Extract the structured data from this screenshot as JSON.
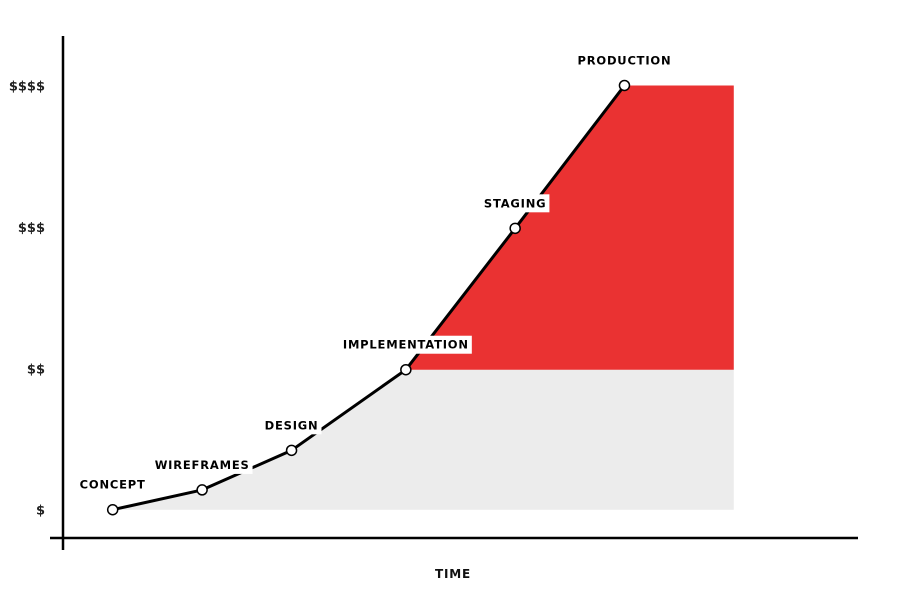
{
  "chart_data": {
    "type": "line",
    "title": "",
    "xlabel": "TIME",
    "ylabel": "",
    "yticks": [
      {
        "value": 1,
        "label": "$"
      },
      {
        "value": 2,
        "label": "$$"
      },
      {
        "value": 3,
        "label": "$$$"
      },
      {
        "value": 4,
        "label": "$$$$"
      }
    ],
    "ylim": [
      0.8,
      4.35
    ],
    "xlim": [
      0,
      8
    ],
    "points": [
      {
        "label": "CONCEPT",
        "x": 0.5,
        "y": 1.0
      },
      {
        "label": "WIREFRAMES",
        "x": 1.4,
        "y": 1.14
      },
      {
        "label": "DESIGN",
        "x": 2.3,
        "y": 1.42
      },
      {
        "label": "IMPLEMENTATION",
        "x": 3.45,
        "y": 1.99
      },
      {
        "label": "STAGING",
        "x": 4.55,
        "y": 2.99
      },
      {
        "label": "PRODUCTION",
        "x": 5.65,
        "y": 4.0
      }
    ],
    "fill_end_x": 6.75,
    "baseline_y": 1.0,
    "colors": {
      "low_cost_area": "#ececec",
      "high_cost_area": "#ea3232",
      "line": "#000000",
      "marker_fill": "#ffffff"
    },
    "grid": false,
    "legend": "none"
  }
}
